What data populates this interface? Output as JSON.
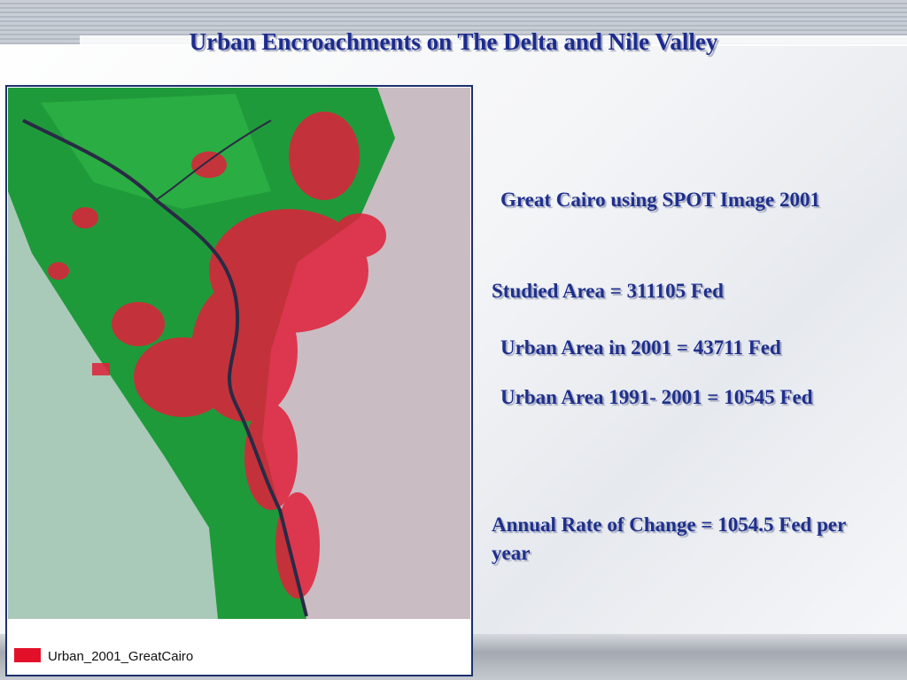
{
  "title": "Urban Encroachments on The Delta and Nile Valley",
  "map": {
    "legend": "Urban_2001_GreatCairo"
  },
  "items": [
    "Great Cairo  using SPOT Image 2001",
    "Studied Area = 311105 Fed",
    "Urban Area in 2001 = 43711 Fed",
    "Urban Area 1991- 2001 = 10545 Fed",
    "Annual Rate of Change = 1054.5 Fed per year"
  ]
}
